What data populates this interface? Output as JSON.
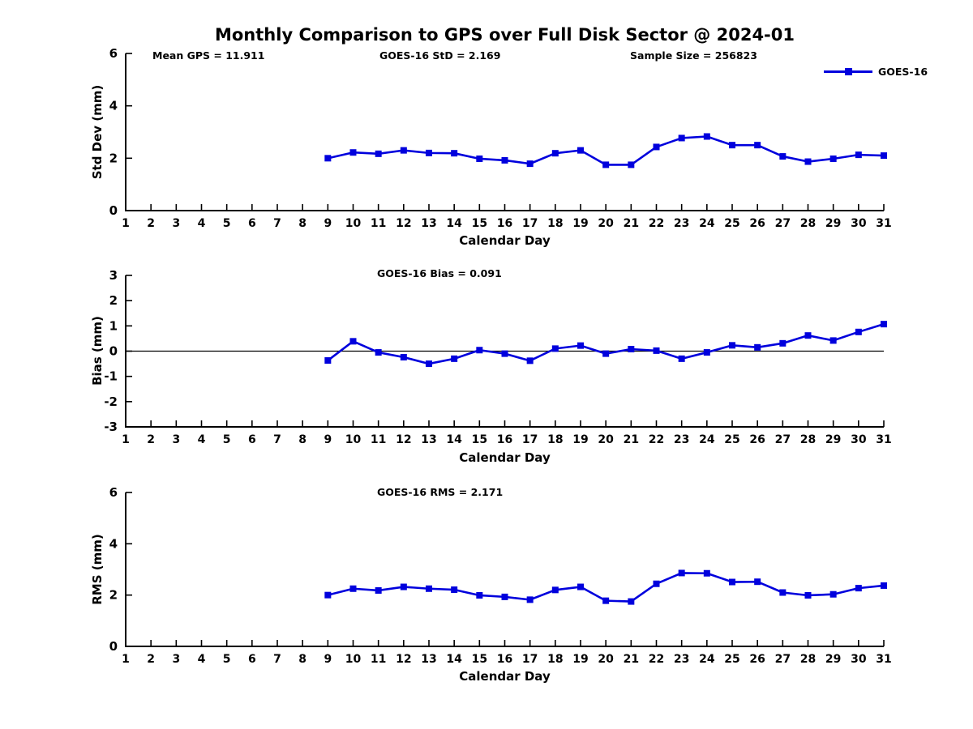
{
  "page": {
    "title": "Monthly Comparison to GPS over Full Disk Sector @ 2024-01"
  },
  "legend": {
    "label": "GOES-16",
    "color": "#0000dd"
  },
  "chart_data": [
    {
      "id": "std-dev",
      "type": "line",
      "title": "",
      "annotations": [
        "Mean GPS = 11.911",
        "GOES-16 StD = 2.169",
        "Sample Size = 256823"
      ],
      "xlabel": "Calendar Day",
      "ylabel": "Std Dev (mm)",
      "xlim": [
        1,
        31
      ],
      "ylim": [
        0,
        6
      ],
      "xticks": [
        1,
        2,
        3,
        4,
        5,
        6,
        7,
        8,
        9,
        10,
        11,
        12,
        13,
        14,
        15,
        16,
        17,
        18,
        19,
        20,
        21,
        22,
        23,
        24,
        25,
        26,
        27,
        28,
        29,
        30,
        31
      ],
      "yticks": [
        0,
        2,
        4,
        6
      ],
      "grid": false,
      "legend_position": "top-right-outside",
      "x": [
        9,
        10,
        11,
        12,
        13,
        14,
        15,
        16,
        17,
        18,
        19,
        20,
        21,
        22,
        23,
        24,
        25,
        26,
        27,
        28,
        29,
        30,
        31
      ],
      "series": [
        {
          "name": "GOES-16",
          "color": "#0000dd",
          "marker": "square",
          "values": [
            2.0,
            2.22,
            2.17,
            2.3,
            2.2,
            2.19,
            1.98,
            1.92,
            1.79,
            2.19,
            2.3,
            1.75,
            1.75,
            2.43,
            2.77,
            2.83,
            2.5,
            2.5,
            2.07,
            1.87,
            1.98,
            2.13,
            2.1
          ]
        }
      ]
    },
    {
      "id": "bias",
      "type": "line",
      "title": "",
      "annotations": [
        "GOES-16 Bias = 0.091"
      ],
      "xlabel": "Calendar Day",
      "ylabel": "Bias (mm)",
      "xlim": [
        1,
        31
      ],
      "ylim": [
        -3,
        3
      ],
      "xticks": [
        1,
        2,
        3,
        4,
        5,
        6,
        7,
        8,
        9,
        10,
        11,
        12,
        13,
        14,
        15,
        16,
        17,
        18,
        19,
        20,
        21,
        22,
        23,
        24,
        25,
        26,
        27,
        28,
        29,
        30,
        31
      ],
      "yticks": [
        -3,
        -2,
        -1,
        0,
        1,
        2,
        3
      ],
      "grid": false,
      "zero_line": true,
      "x": [
        9,
        10,
        11,
        12,
        13,
        14,
        15,
        16,
        17,
        18,
        19,
        20,
        21,
        22,
        23,
        24,
        25,
        26,
        27,
        28,
        29,
        30,
        31
      ],
      "series": [
        {
          "name": "GOES-16",
          "color": "#0000dd",
          "marker": "square",
          "values": [
            -0.37,
            0.39,
            -0.05,
            -0.24,
            -0.5,
            -0.3,
            0.04,
            -0.1,
            -0.38,
            0.1,
            0.22,
            -0.1,
            0.08,
            0.02,
            -0.3,
            -0.05,
            0.23,
            0.15,
            0.31,
            0.62,
            0.42,
            0.76,
            1.07
          ]
        }
      ]
    },
    {
      "id": "rms",
      "type": "line",
      "title": "",
      "annotations": [
        "GOES-16 RMS = 2.171"
      ],
      "xlabel": "Calendar Day",
      "ylabel": "RMS (mm)",
      "xlim": [
        1,
        31
      ],
      "ylim": [
        0,
        6
      ],
      "xticks": [
        1,
        2,
        3,
        4,
        5,
        6,
        7,
        8,
        9,
        10,
        11,
        12,
        13,
        14,
        15,
        16,
        17,
        18,
        19,
        20,
        21,
        22,
        23,
        24,
        25,
        26,
        27,
        28,
        29,
        30,
        31
      ],
      "yticks": [
        0,
        2,
        4,
        6
      ],
      "grid": false,
      "x": [
        9,
        10,
        11,
        12,
        13,
        14,
        15,
        16,
        17,
        18,
        19,
        20,
        21,
        22,
        23,
        24,
        25,
        26,
        27,
        28,
        29,
        30,
        31
      ],
      "series": [
        {
          "name": "GOES-16",
          "color": "#0000dd",
          "marker": "square",
          "values": [
            2.0,
            2.25,
            2.18,
            2.32,
            2.25,
            2.21,
            1.99,
            1.93,
            1.82,
            2.2,
            2.32,
            1.78,
            1.75,
            2.44,
            2.86,
            2.85,
            2.51,
            2.52,
            2.1,
            1.99,
            2.03,
            2.27,
            2.37
          ]
        }
      ]
    }
  ]
}
